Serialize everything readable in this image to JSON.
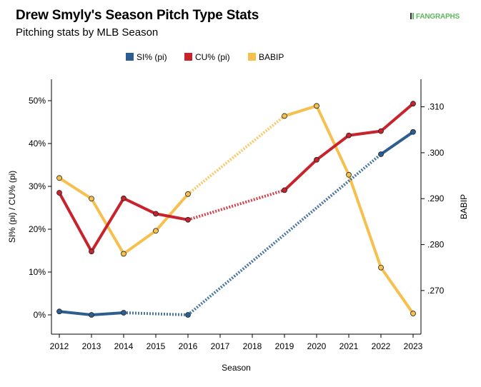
{
  "header": {
    "title": "Drew Smyly's Season Pitch Type Stats",
    "subtitle": "Pitching stats by MLB Season",
    "logo_text": "FANGRAPHS"
  },
  "chart_data": {
    "type": "line",
    "title": "Drew Smyly's Season Pitch Type Stats",
    "subtitle": "Pitching stats by MLB Season",
    "xlabel": "Season",
    "ylabel": "SI% (pi) / CU% (pi)",
    "y2label": "BABIP",
    "categories": [
      "2012",
      "2013",
      "2014",
      "2015",
      "2016",
      "2017",
      "2018",
      "2019",
      "2020",
      "2021",
      "2022",
      "2023"
    ],
    "ylim": [
      -0.045,
      0.55
    ],
    "y2lim": [
      0.2605,
      0.316
    ],
    "yticks": [
      0,
      0.1,
      0.2,
      0.3,
      0.4,
      0.5
    ],
    "ytick_labels": [
      "0%",
      "10%",
      "20%",
      "30%",
      "40%",
      "50%"
    ],
    "y2ticks": [
      0.27,
      0.28,
      0.29,
      0.3,
      0.31
    ],
    "y2tick_labels": [
      ".270",
      ".280",
      ".290",
      ".300",
      ".310"
    ],
    "legend_position": "top",
    "grid": false,
    "series": [
      {
        "name": "SI% (pi)",
        "axis": "left",
        "color": "#2d5e91",
        "values": [
          0.008,
          0.0,
          0.005,
          null,
          0.0,
          null,
          null,
          null,
          null,
          null,
          0.375,
          0.427
        ]
      },
      {
        "name": "CU% (pi)",
        "axis": "left",
        "color": "#c8232d",
        "values": [
          0.285,
          0.148,
          0.272,
          0.236,
          0.222,
          null,
          null,
          0.291,
          0.362,
          0.419,
          0.429,
          0.493
        ]
      },
      {
        "name": "BABIP",
        "axis": "right",
        "color": "#f6c04f",
        "values": [
          0.2945,
          0.29,
          0.278,
          0.283,
          0.291,
          null,
          null,
          0.308,
          0.3102,
          0.2952,
          0.275,
          0.265
        ]
      }
    ]
  }
}
